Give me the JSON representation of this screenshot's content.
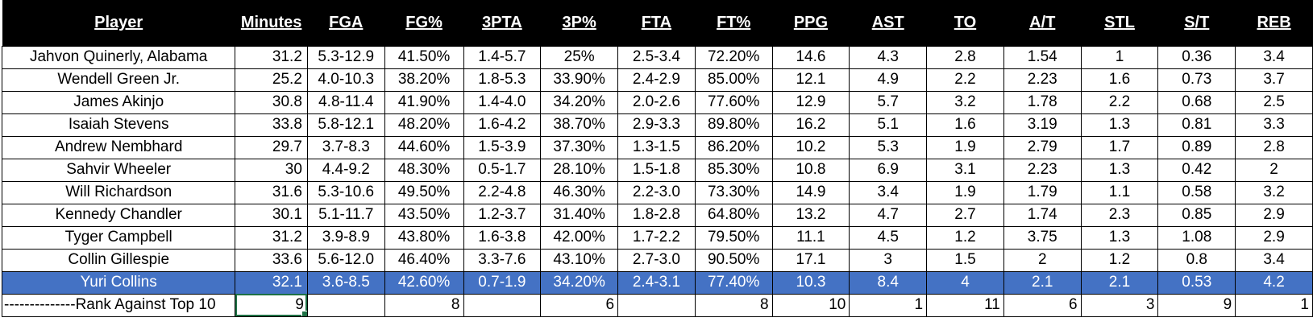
{
  "headers": [
    "Player",
    "Minutes",
    "FGA",
    "FG%",
    "3PTA",
    "3P%",
    "FTA",
    "FT%",
    "PPG",
    "AST",
    "TO",
    "A/T",
    "STL",
    "S/T",
    "REB"
  ],
  "rows": [
    {
      "player": "Jahvon Quinerly, Alabama",
      "minutes": "31.2",
      "fga": "5.3-12.9",
      "fgp": "41.50%",
      "tpa": "1.4-5.7",
      "tpp": "25%",
      "fta": "2.5-3.4",
      "ftp": "72.20%",
      "ppg": "14.6",
      "ast": "4.3",
      "to": "2.8",
      "at": "1.54",
      "stl": "1",
      "st": "0.36",
      "reb": "3.4"
    },
    {
      "player": "Wendell Green Jr.",
      "minutes": "25.2",
      "fga": "4.0-10.3",
      "fgp": "38.20%",
      "tpa": "1.8-5.3",
      "tpp": "33.90%",
      "fta": "2.4-2.9",
      "ftp": "85.00%",
      "ppg": "12.1",
      "ast": "4.9",
      "to": "2.2",
      "at": "2.23",
      "stl": "1.6",
      "st": "0.73",
      "reb": "3.7"
    },
    {
      "player": "James Akinjo",
      "minutes": "30.8",
      "fga": "4.8-11.4",
      "fgp": "41.90%",
      "tpa": "1.4-4.0",
      "tpp": "34.20%",
      "fta": "2.0-2.6",
      "ftp": "77.60%",
      "ppg": "12.9",
      "ast": "5.7",
      "to": "3.2",
      "at": "1.78",
      "stl": "2.2",
      "st": "0.68",
      "reb": "2.5"
    },
    {
      "player": "Isaiah Stevens",
      "minutes": "33.8",
      "fga": "5.8-12.1",
      "fgp": "48.20%",
      "tpa": "1.6-4.2",
      "tpp": "38.70%",
      "fta": "2.9-3.3",
      "ftp": "89.80%",
      "ppg": "16.2",
      "ast": "5.1",
      "to": "1.6",
      "at": "3.19",
      "stl": "1.3",
      "st": "0.81",
      "reb": "3.3"
    },
    {
      "player": "Andrew Nembhard",
      "minutes": "29.7",
      "fga": "3.7-8.3",
      "fgp": "44.60%",
      "tpa": "1.5-3.9",
      "tpp": "37.30%",
      "fta": "1.3-1.5",
      "ftp": "86.20%",
      "ppg": "10.2",
      "ast": "5.3",
      "to": "1.9",
      "at": "2.79",
      "stl": "1.7",
      "st": "0.89",
      "reb": "2.8"
    },
    {
      "player": "Sahvir Wheeler",
      "minutes": "30",
      "fga": "4.4-9.2",
      "fgp": "48.30%",
      "tpa": "0.5-1.7",
      "tpp": "28.10%",
      "fta": "1.5-1.8",
      "ftp": "85.30%",
      "ppg": "10.8",
      "ast": "6.9",
      "to": "3.1",
      "at": "2.23",
      "stl": "1.3",
      "st": "0.42",
      "reb": "2"
    },
    {
      "player": "Will Richardson",
      "minutes": "31.6",
      "fga": "5.3-10.6",
      "fgp": "49.50%",
      "tpa": "2.2-4.8",
      "tpp": "46.30%",
      "fta": "2.2-3.0",
      "ftp": "73.30%",
      "ppg": "14.9",
      "ast": "3.4",
      "to": "1.9",
      "at": "1.79",
      "stl": "1.1",
      "st": "0.58",
      "reb": "3.2"
    },
    {
      "player": "Kennedy Chandler",
      "minutes": "30.1",
      "fga": "5.1-11.7",
      "fgp": "43.50%",
      "tpa": "1.2-3.7",
      "tpp": "31.40%",
      "fta": "1.8-2.8",
      "ftp": "64.80%",
      "ppg": "13.2",
      "ast": "4.7",
      "to": "2.7",
      "at": "1.74",
      "stl": "2.3",
      "st": "0.85",
      "reb": "2.9"
    },
    {
      "player": "Tyger Campbell",
      "minutes": "31.2",
      "fga": "3.9-8.9",
      "fgp": "43.80%",
      "tpa": "1.6-3.8",
      "tpp": "42.00%",
      "fta": "1.7-2.2",
      "ftp": "79.50%",
      "ppg": "11.1",
      "ast": "4.5",
      "to": "1.2",
      "at": "3.75",
      "stl": "1.3",
      "st": "1.08",
      "reb": "2.9"
    },
    {
      "player": "Collin Gillespie",
      "minutes": "33.6",
      "fga": "5.6-12.0",
      "fgp": "46.40%",
      "tpa": "3.3-7.6",
      "tpp": "43.10%",
      "fta": "2.7-3.0",
      "ftp": "90.50%",
      "ppg": "17.1",
      "ast": "3",
      "to": "1.5",
      "at": "2",
      "stl": "1.2",
      "st": "0.8",
      "reb": "3.4"
    }
  ],
  "highlight": {
    "player": "Yuri Collins",
    "minutes": "32.1",
    "fga": "3.6-8.5",
    "fgp": "42.60%",
    "tpa": "0.7-1.9",
    "tpp": "34.20%",
    "fta": "2.4-3.1",
    "ftp": "77.40%",
    "ppg": "10.3",
    "ast": "8.4",
    "to": "4",
    "at": "2.1",
    "stl": "2.1",
    "st": "0.53",
    "reb": "4.2"
  },
  "rank": {
    "label": "--------------Rank Against Top 10",
    "minutes": "9",
    "fga": "",
    "fgp": "8",
    "tpa": "",
    "tpp": "6",
    "fta": "",
    "ftp": "8",
    "ppg": "10",
    "ast": "1",
    "to": "11",
    "at": "6",
    "stl": "3",
    "st": "9",
    "reb": "1"
  },
  "colors": {
    "header_bg": "#000000",
    "highlight_bg": "#4472c4",
    "selection": "#1e7145"
  }
}
